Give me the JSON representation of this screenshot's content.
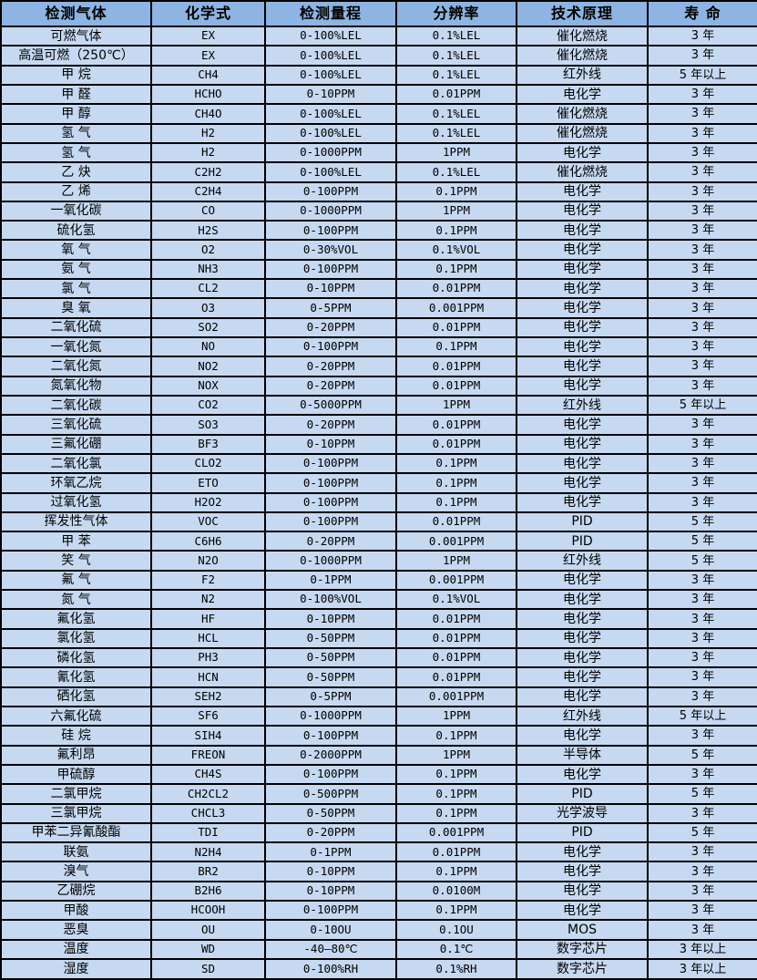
{
  "table": {
    "columns": [
      "检测气体",
      "化学式",
      "检测量程",
      "分辨率",
      "技术原理",
      "寿 命"
    ],
    "rows": [
      [
        "可燃气体",
        "EX",
        "0-100%LEL",
        "0.1%LEL",
        "催化燃烧",
        "3 年"
      ],
      [
        "高温可燃（250℃）",
        "EX",
        "0-100%LEL",
        "0.1%LEL",
        "催化燃烧",
        "3 年"
      ],
      [
        "甲 烷",
        "CH4",
        "0-100%LEL",
        "0.1%LEL",
        "红外线",
        "5 年以上"
      ],
      [
        "甲 醛",
        "HCHO",
        "0-10PPM",
        "0.01PPM",
        "电化学",
        "3 年"
      ],
      [
        "甲 醇",
        "CH4O",
        "0-100%LEL",
        "0.1%LEL",
        "催化燃烧",
        "3 年"
      ],
      [
        "氢 气",
        "H2",
        "0-100%LEL",
        "0.1%LEL",
        "催化燃烧",
        "3 年"
      ],
      [
        "氢 气",
        "H2",
        "0-1000PPM",
        "1PPM",
        "电化学",
        "3 年"
      ],
      [
        "乙 炔",
        "C2H2",
        "0-100%LEL",
        "0.1%LEL",
        "催化燃烧",
        "3 年"
      ],
      [
        "乙 烯",
        "C2H4",
        "0-100PPM",
        "0.1PPM",
        "电化学",
        "3 年"
      ],
      [
        "一氧化碳",
        "CO",
        "0-1000PPM",
        "1PPM",
        "电化学",
        "3 年"
      ],
      [
        "硫化氢",
        "H2S",
        "0-100PPM",
        "0.1PPM",
        "电化学",
        "3 年"
      ],
      [
        "氧 气",
        "O2",
        "0-30%VOL",
        "0.1%VOL",
        "电化学",
        "3 年"
      ],
      [
        "氨 气",
        "NH3",
        "0-100PPM",
        "0.1PPM",
        "电化学",
        "3 年"
      ],
      [
        "氯 气",
        "CL2",
        "0-10PPM",
        "0.01PPM",
        "电化学",
        "3 年"
      ],
      [
        "臭 氧",
        "O3",
        "0-5PPM",
        "0.001PPM",
        "电化学",
        "3 年"
      ],
      [
        "二氧化硫",
        "SO2",
        "0-20PPM",
        "0.01PPM",
        "电化学",
        "3 年"
      ],
      [
        "一氧化氮",
        "NO",
        "0-100PPM",
        "0.1PPM",
        "电化学",
        "3 年"
      ],
      [
        "二氧化氮",
        "NO2",
        "0-20PPM",
        "0.01PPM",
        "电化学",
        "3 年"
      ],
      [
        "氮氧化物",
        "NOX",
        "0-20PPM",
        "0.01PPM",
        "电化学",
        "3 年"
      ],
      [
        "二氧化碳",
        "CO2",
        "0-5000PPM",
        "1PPM",
        "红外线",
        "5 年以上"
      ],
      [
        "三氧化硫",
        "SO3",
        "0-20PPM",
        "0.01PPM",
        "电化学",
        "3 年"
      ],
      [
        "三氟化硼",
        "BF3",
        "0-10PPM",
        "0.01PPM",
        "电化学",
        "3 年"
      ],
      [
        "二氧化氯",
        "CLO2",
        "0-100PPM",
        "0.1PPM",
        "电化学",
        "3 年"
      ],
      [
        "环氧乙烷",
        "ETO",
        "0-100PPM",
        "0.1PPM",
        "电化学",
        "3 年"
      ],
      [
        "过氧化氢",
        "H2O2",
        "0-100PPM",
        "0.1PPM",
        "电化学",
        "3 年"
      ],
      [
        "挥发性气体",
        "VOC",
        "0-100PPM",
        "0.01PPM",
        "PID",
        "5 年"
      ],
      [
        "甲 苯",
        "C6H6",
        "0-20PPM",
        "0.001PPM",
        "PID",
        "5 年"
      ],
      [
        "笑 气",
        "N2O",
        "0-1000PPM",
        "1PPM",
        "红外线",
        "5 年"
      ],
      [
        "氟 气",
        "F2",
        "0-1PPM",
        "0.001PPM",
        "电化学",
        "3 年"
      ],
      [
        "氮 气",
        "N2",
        "0-100%VOL",
        "0.1%VOL",
        "电化学",
        "3 年"
      ],
      [
        "氟化氢",
        "HF",
        "0-10PPM",
        "0.01PPM",
        "电化学",
        "3 年"
      ],
      [
        "氯化氢",
        "HCL",
        "0-50PPM",
        "0.01PPM",
        "电化学",
        "3 年"
      ],
      [
        "磷化氢",
        "PH3",
        "0-50PPM",
        "0.01PPM",
        "电化学",
        "3 年"
      ],
      [
        "氰化氢",
        "HCN",
        "0-50PPM",
        "0.01PPM",
        "电化学",
        "3 年"
      ],
      [
        "硒化氢",
        "SEH2",
        "0-5PPM",
        "0.001PPM",
        "电化学",
        "3 年"
      ],
      [
        "六氟化硫",
        "SF6",
        "0-1000PPM",
        "1PPM",
        "红外线",
        "5 年以上"
      ],
      [
        "硅 烷",
        "SIH4",
        "0-100PPM",
        "0.1PPM",
        "电化学",
        "3 年"
      ],
      [
        "氟利昂",
        "FREON",
        "0-2000PPM",
        "1PPM",
        "半导体",
        "5 年"
      ],
      [
        "甲硫醇",
        "CH4S",
        "0-100PPM",
        "0.1PPM",
        "电化学",
        "3 年"
      ],
      [
        "二氯甲烷",
        "CH2CL2",
        "0-500PPM",
        "0.1PPM",
        "PID",
        "5 年"
      ],
      [
        "三氯甲烷",
        "CHCL3",
        "0-50PPM",
        "0.1PPM",
        "光学波导",
        "3 年"
      ],
      [
        "甲苯二异氰酸酯",
        "TDI",
        "0-20PPM",
        "0.001PPM",
        "PID",
        "5 年"
      ],
      [
        "联氨",
        "N2H4",
        "0-1PPM",
        "0.01PPM",
        "电化学",
        "3 年"
      ],
      [
        "溴气",
        "BR2",
        "0-10PPM",
        "0.1PPM",
        "电化学",
        "3 年"
      ],
      [
        "乙硼烷",
        "B2H6",
        "0-10PPM",
        "0.0100M",
        "电化学",
        "3 年"
      ],
      [
        "甲酸",
        "HCOOH",
        "0-100PPM",
        "0.1PPM",
        "电化学",
        "3 年"
      ],
      [
        "恶臭",
        "OU",
        "0-10OU",
        "0.1OU",
        "MOS",
        "3 年"
      ],
      [
        "温度",
        "WD",
        "-40—80℃",
        "0.1℃",
        "数字芯片",
        "3 年以上"
      ],
      [
        "湿度",
        "SD",
        "0-100%RH",
        "0.1%RH",
        "数字芯片",
        "3 年以上"
      ]
    ]
  },
  "colors": {
    "header_bg": "#8DB4E2",
    "row_bg": "#C6D9F1",
    "border": "#000000",
    "text": "#000000"
  }
}
